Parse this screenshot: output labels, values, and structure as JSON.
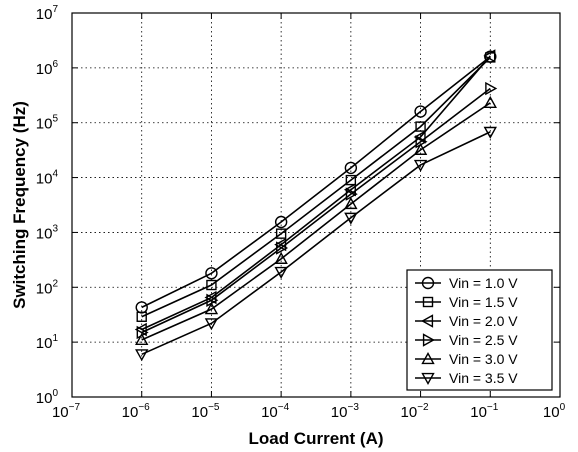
{
  "chart_data": {
    "type": "line",
    "xlabel": "Load Current (A)",
    "ylabel": "Switching Frequency (Hz)",
    "x_scale": "log",
    "y_scale": "log",
    "xlim": [
      1e-07,
      1
    ],
    "ylim": [
      1,
      10000000.0
    ],
    "x_ticks": [
      {
        "value": 1e-07,
        "base": "10",
        "exp": "−7"
      },
      {
        "value": 1e-06,
        "base": "10",
        "exp": "−6"
      },
      {
        "value": 1e-05,
        "base": "10",
        "exp": "−5"
      },
      {
        "value": 0.0001,
        "base": "10",
        "exp": "−4"
      },
      {
        "value": 0.001,
        "base": "10",
        "exp": "−3"
      },
      {
        "value": 0.01,
        "base": "10",
        "exp": "−2"
      },
      {
        "value": 0.1,
        "base": "10",
        "exp": "−1"
      },
      {
        "value": 1,
        "base": "10",
        "exp": "0"
      }
    ],
    "y_ticks": [
      {
        "value": 1,
        "base": "10",
        "exp": "0"
      },
      {
        "value": 10,
        "base": "10",
        "exp": "1"
      },
      {
        "value": 100,
        "base": "10",
        "exp": "2"
      },
      {
        "value": 1000,
        "base": "10",
        "exp": "3"
      },
      {
        "value": 10000,
        "base": "10",
        "exp": "4"
      },
      {
        "value": 100000,
        "base": "10",
        "exp": "5"
      },
      {
        "value": 1000000,
        "base": "10",
        "exp": "6"
      },
      {
        "value": 10000000,
        "base": "10",
        "exp": "7"
      }
    ],
    "grid": true,
    "legend_position": "bottom-right",
    "x": [
      1e-06,
      1e-05,
      0.0001,
      0.001,
      0.01,
      0.1
    ],
    "series": [
      {
        "name": "Vin = 1.0 V",
        "marker": "circle",
        "values": [
          43,
          180,
          1550,
          15000,
          160000,
          1600000
        ]
      },
      {
        "name": "Vin = 1.5 V",
        "marker": "square",
        "values": [
          29,
          110,
          950,
          9000,
          85000,
          1550000
        ]
      },
      {
        "name": "Vin = 2.0 V",
        "marker": "triangle-left",
        "values": [
          17,
          65,
          600,
          6000,
          55000,
          1650000
        ]
      },
      {
        "name": "Vin = 2.5 V",
        "marker": "triangle-right",
        "values": [
          15,
          58,
          520,
          5000,
          45000,
          420000
        ]
      },
      {
        "name": "Vin = 3.0 V",
        "marker": "triangle-up",
        "values": [
          11,
          40,
          330,
          3300,
          32000,
          230000
        ]
      },
      {
        "name": "Vin = 3.5 V",
        "marker": "triangle-down",
        "values": [
          6,
          22,
          190,
          1850,
          17000,
          68000
        ]
      }
    ]
  }
}
